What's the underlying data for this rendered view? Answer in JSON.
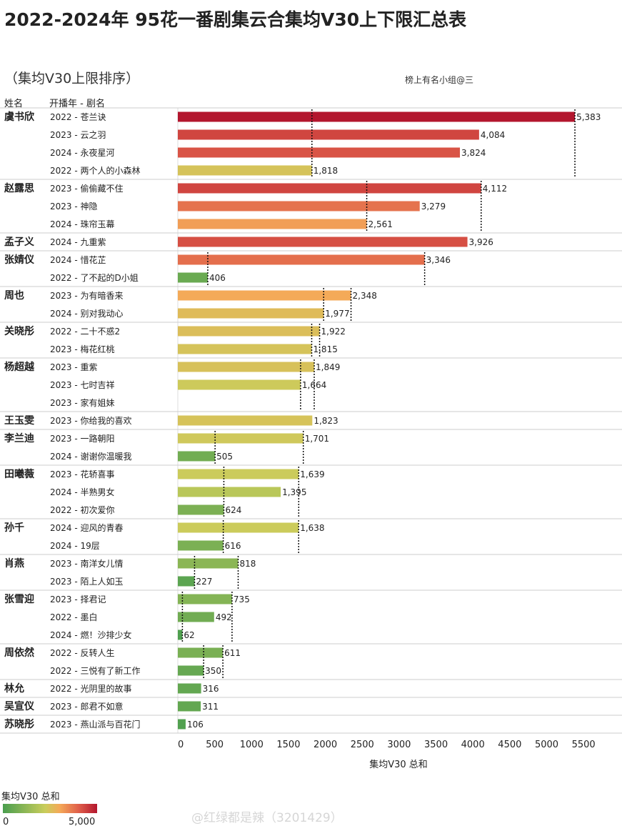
{
  "title": "2022-2024年 95花一番剧集云合集均V30上下限汇总表",
  "subtitle": "（集均V30上限排序）",
  "credit": "榜上有名小组@三",
  "header": {
    "name_col": "姓名",
    "drama_col": "开播年 - 剧名"
  },
  "legend": {
    "title": "集均V30 总和",
    "min": "0",
    "max": "5,000"
  },
  "watermark": "@红绿都是辣（3201429）",
  "colors": {
    "low": "#4a9e4f",
    "mid": "#c9cd5b",
    "orange": "#f4aa58",
    "high": "#e0604a",
    "max": "#b3162e"
  },
  "chart_data": {
    "type": "bar",
    "orientation": "horizontal",
    "xlabel": "集均V30 总和",
    "xlim": [
      0,
      5500
    ],
    "xticks": [
      0,
      500,
      1000,
      1500,
      2000,
      2500,
      3000,
      3500,
      4000,
      4500,
      5000,
      5500
    ],
    "color_scale": [
      0,
      5000
    ],
    "reference_lines": "每位演员的上限与下限以虚线标出",
    "groups": [
      {
        "name": "虞书欣",
        "rows": [
          {
            "label": "2022 - 苍兰诀",
            "value": 5383,
            "value_label": "5,383"
          },
          {
            "label": "2023 - 云之羽",
            "value": 4084,
            "value_label": "4,084"
          },
          {
            "label": "2024 - 永夜星河",
            "value": 3824,
            "value_label": "3,824"
          },
          {
            "label": "2022 - 两个人的小森林",
            "value": 1818,
            "value_label": "1,818"
          }
        ]
      },
      {
        "name": "赵露思",
        "rows": [
          {
            "label": "2023 - 偷偷藏不住",
            "value": 4112,
            "value_label": "4,112"
          },
          {
            "label": "2023 - 神隐",
            "value": 3279,
            "value_label": "3,279"
          },
          {
            "label": "2024 - 珠帘玉幕",
            "value": 2561,
            "value_label": "2,561"
          }
        ]
      },
      {
        "name": "孟子义",
        "rows": [
          {
            "label": "2024 - 九重紫",
            "value": 3926,
            "value_label": "3,926"
          }
        ]
      },
      {
        "name": "张婧仪",
        "rows": [
          {
            "label": "2024 - 惜花芷",
            "value": 3346,
            "value_label": "3,346"
          },
          {
            "label": "2022 - 了不起的D小姐",
            "value": 406,
            "value_label": "406"
          }
        ]
      },
      {
        "name": "周也",
        "rows": [
          {
            "label": "2023 - 为有暗香来",
            "value": 2348,
            "value_label": "2,348"
          },
          {
            "label": "2024 - 别对我动心",
            "value": 1977,
            "value_label": "1,977"
          }
        ]
      },
      {
        "name": "关晓彤",
        "rows": [
          {
            "label": "2022 - 二十不惑2",
            "value": 1922,
            "value_label": "1,922"
          },
          {
            "label": "2023 - 梅花红桃",
            "value": 1815,
            "value_label": "1,815"
          }
        ]
      },
      {
        "name": "杨超越",
        "rows": [
          {
            "label": "2023 - 重紫",
            "value": 1849,
            "value_label": "1,849"
          },
          {
            "label": "2023 - 七时吉祥",
            "value": 1664,
            "value_label": "1,664"
          },
          {
            "label": "2023 - 家有姐妹",
            "value": null,
            "value_label": ""
          }
        ]
      },
      {
        "name": "王玉雯",
        "rows": [
          {
            "label": "2023 - 你给我的喜欢",
            "value": 1823,
            "value_label": "1,823"
          }
        ]
      },
      {
        "name": "李兰迪",
        "rows": [
          {
            "label": "2023 - 一路朝阳",
            "value": 1701,
            "value_label": "1,701"
          },
          {
            "label": "2024 - 谢谢你温暖我",
            "value": 505,
            "value_label": "505"
          }
        ]
      },
      {
        "name": "田曦薇",
        "rows": [
          {
            "label": "2023 - 花轿喜事",
            "value": 1639,
            "value_label": "1,639"
          },
          {
            "label": "2024 - 半熟男女",
            "value": 1395,
            "value_label": "1,395"
          },
          {
            "label": "2022 - 初次爱你",
            "value": 624,
            "value_label": "624"
          }
        ]
      },
      {
        "name": "孙千",
        "rows": [
          {
            "label": "2024 - 迎风的青春",
            "value": 1638,
            "value_label": "1,638"
          },
          {
            "label": "2024 - 19层",
            "value": 616,
            "value_label": "616"
          }
        ]
      },
      {
        "name": "肖燕",
        "rows": [
          {
            "label": "2023 - 南洋女儿情",
            "value": 818,
            "value_label": "818"
          },
          {
            "label": "2023 - 陌上人如玉",
            "value": 227,
            "value_label": "227"
          }
        ]
      },
      {
        "name": "张雪迎",
        "rows": [
          {
            "label": "2023 - 择君记",
            "value": 735,
            "value_label": "735"
          },
          {
            "label": "2022 - 墨白",
            "value": 492,
            "value_label": "492"
          },
          {
            "label": "2024 - 燃！沙排少女",
            "value": 62,
            "value_label": "62"
          }
        ]
      },
      {
        "name": "周依然",
        "rows": [
          {
            "label": "2022 - 反转人生",
            "value": 611,
            "value_label": "611"
          },
          {
            "label": "2022 - 三悦有了新工作",
            "value": 350,
            "value_label": "350"
          }
        ]
      },
      {
        "name": "林允",
        "rows": [
          {
            "label": "2022 - 光阴里的故事",
            "value": 316,
            "value_label": "316"
          }
        ]
      },
      {
        "name": "吴宣仪",
        "rows": [
          {
            "label": "2023 - 郎君不如意",
            "value": 311,
            "value_label": "311"
          }
        ]
      },
      {
        "name": "苏晓彤",
        "rows": [
          {
            "label": "2023 - 燕山派与百花门",
            "value": 106,
            "value_label": "106"
          }
        ]
      }
    ]
  }
}
